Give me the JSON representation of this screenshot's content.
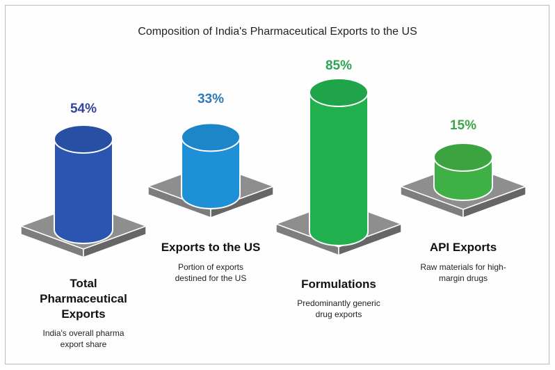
{
  "chart_data": {
    "type": "bar",
    "title": "Composition of India's Pharmaceutical Exports to the US",
    "categories": [
      "Total Pharmaceutical Exports",
      "Exports to the US",
      "Formulations",
      "API Exports"
    ],
    "values": [
      54,
      33,
      85,
      15
    ],
    "value_labels": [
      "54%",
      "33%",
      "85%",
      "15%"
    ],
    "unit": "%",
    "items": [
      {
        "title_lines": [
          "Total",
          "Pharmaceutical",
          "Exports"
        ],
        "desc_lines": [
          "India's overall pharma",
          "export share"
        ],
        "color": "#2a55b0",
        "label_color": "#34449a"
      },
      {
        "title_lines": [
          "Exports to the US"
        ],
        "desc_lines": [
          "Portion of exports",
          "destined for the US"
        ],
        "color": "#1e90d8",
        "label_color": "#2c78b8"
      },
      {
        "title_lines": [
          "Formulations"
        ],
        "desc_lines": [
          "Predominantly generic",
          "drug exports"
        ],
        "color": "#22b04f",
        "label_color": "#2aa653"
      },
      {
        "title_lines": [
          "API Exports"
        ],
        "desc_lines": [
          "Raw materials for high-",
          "margin drugs"
        ],
        "color": "#3fb045",
        "label_color": "#3aa648"
      }
    ]
  }
}
